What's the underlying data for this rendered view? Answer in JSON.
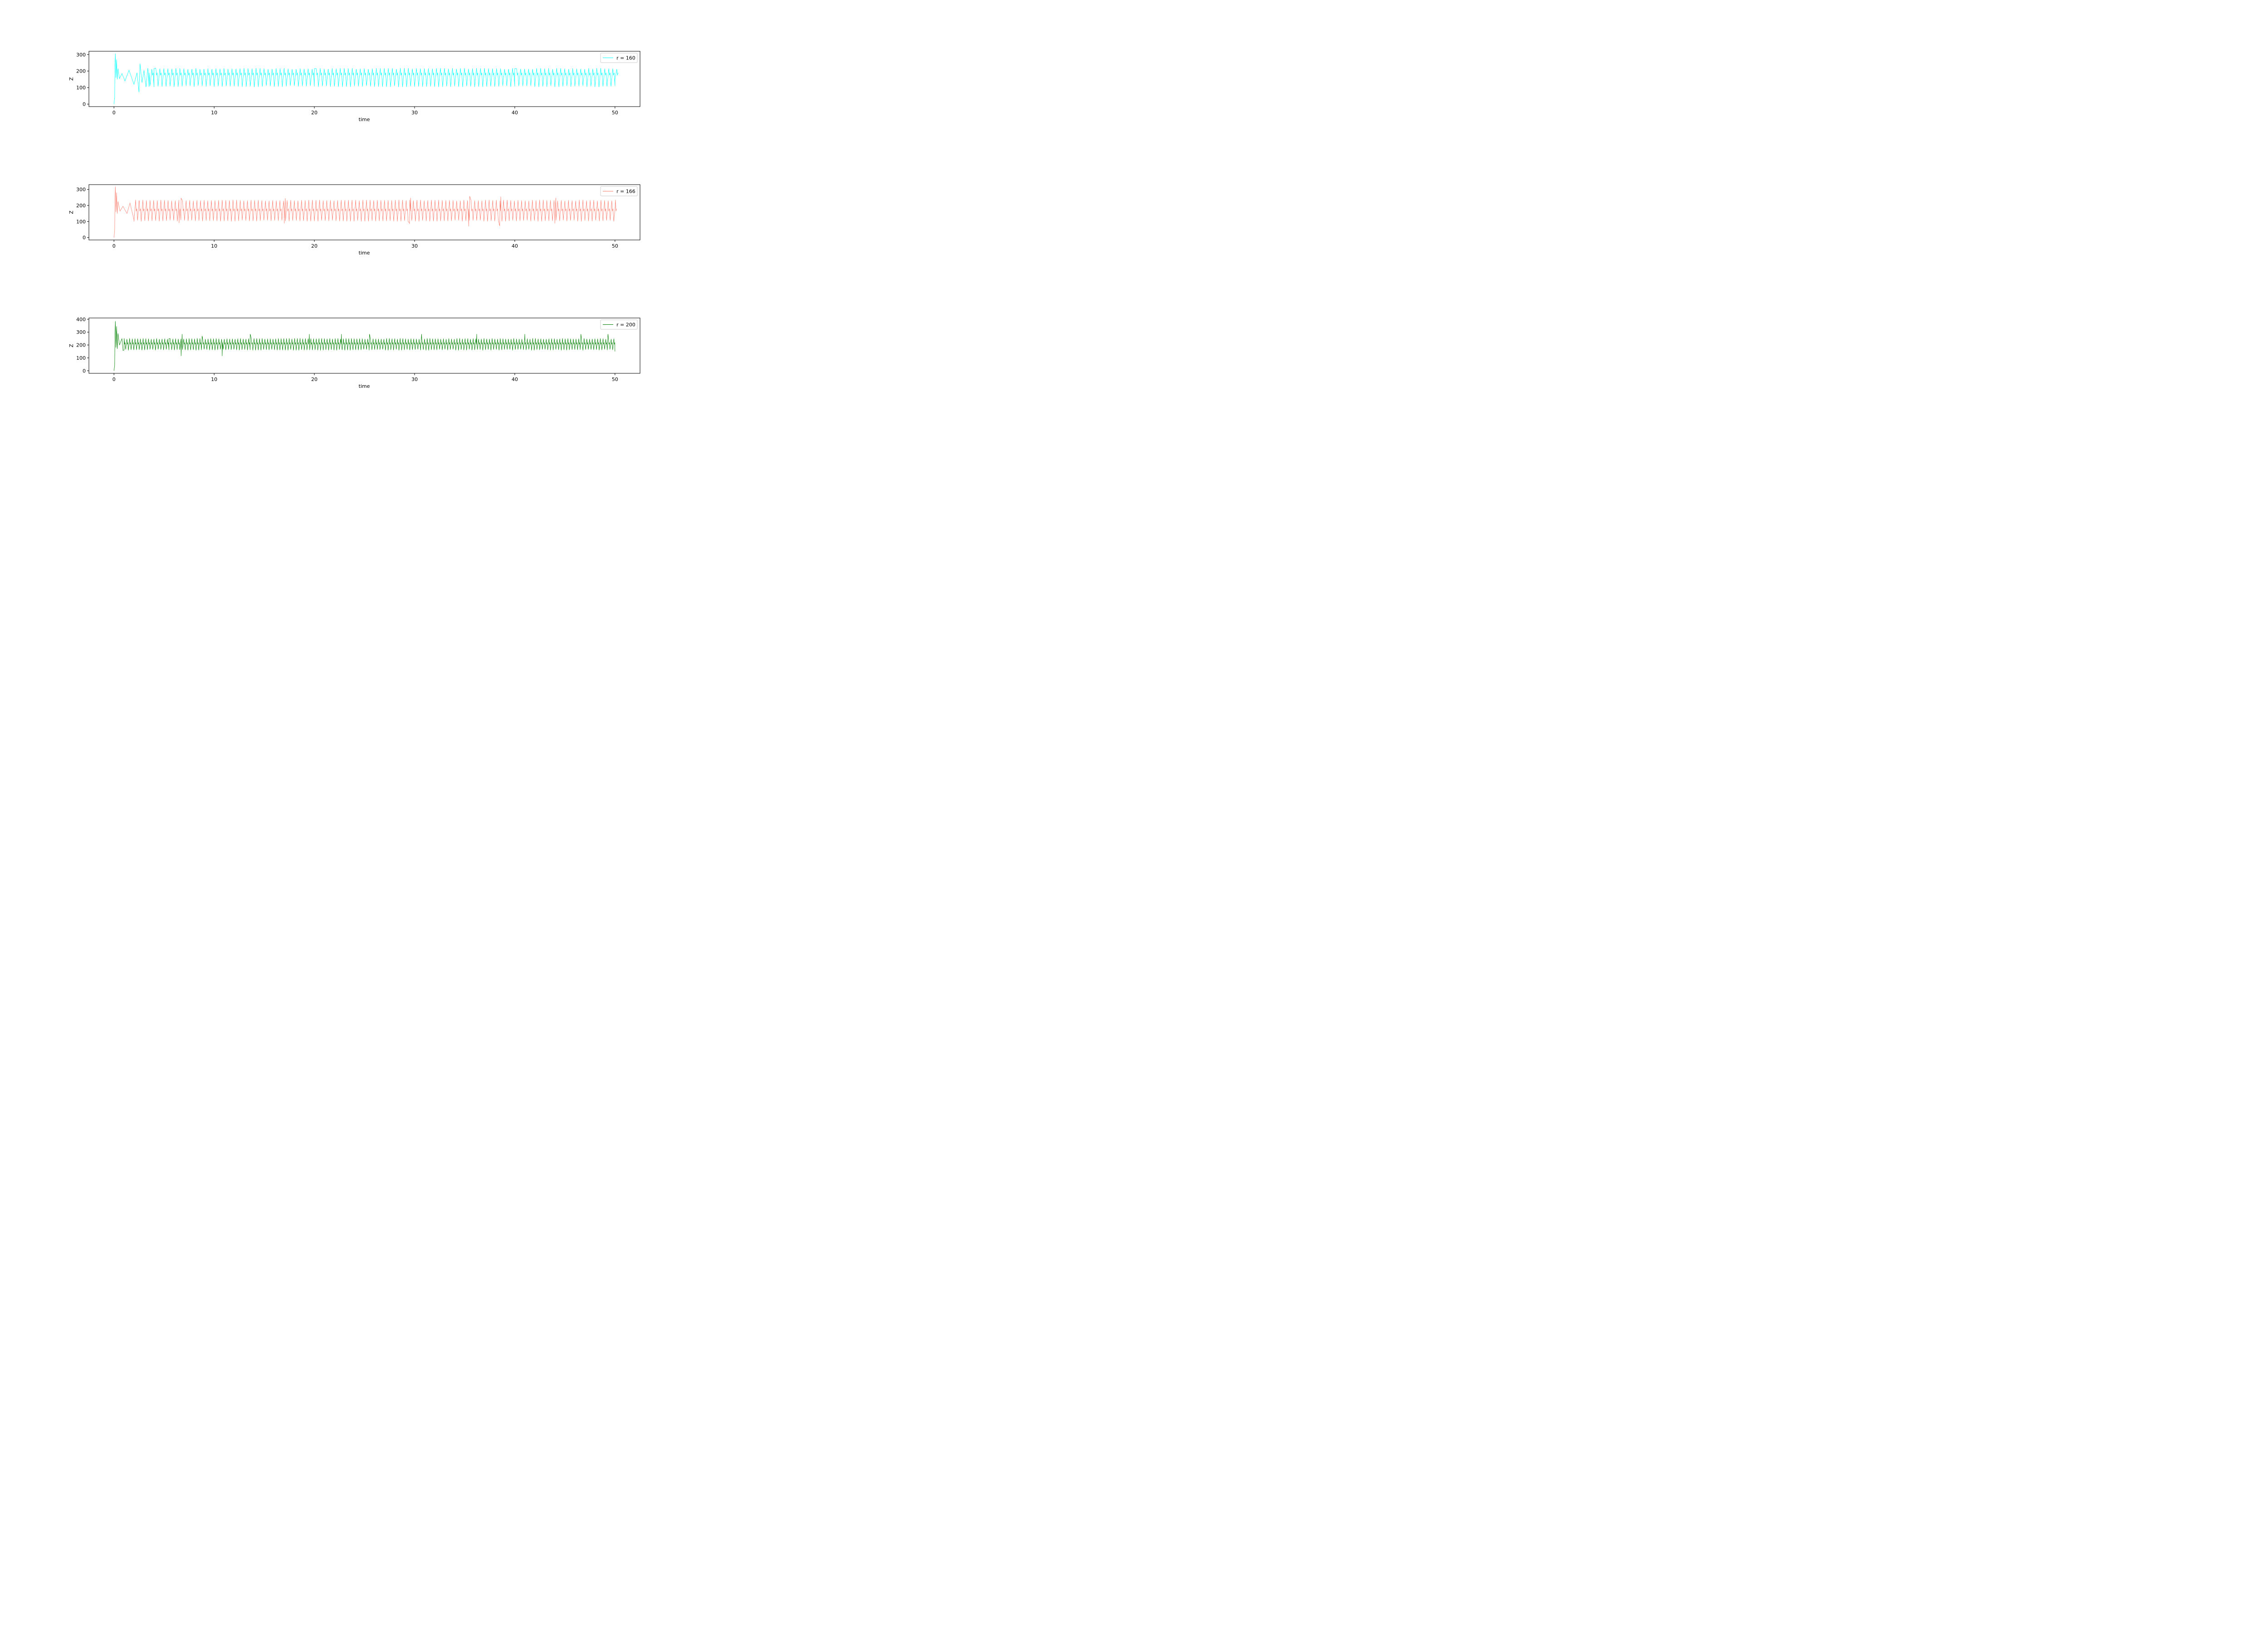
{
  "figure": {
    "background": "#ffffff"
  },
  "chart_data": [
    {
      "type": "line",
      "title": "",
      "xlabel": "time",
      "ylabel": "Z",
      "xlim": [
        -2.5,
        52.5
      ],
      "ylim": [
        -15,
        320
      ],
      "xticks": [
        0,
        10,
        20,
        30,
        40,
        50
      ],
      "yticks": [
        0,
        100,
        200,
        300
      ],
      "grid": false,
      "legend_position": "top-right",
      "series": [
        {
          "name": "r = 160",
          "color": "#00ffff",
          "sampled_points": [
            [
              0.0,
              0
            ],
            [
              0.07,
              40
            ],
            [
              0.1,
              230
            ],
            [
              0.14,
              305
            ],
            [
              0.2,
              160
            ],
            [
              0.26,
              270
            ],
            [
              0.33,
              150
            ],
            [
              0.4,
              215
            ],
            [
              0.55,
              155
            ],
            [
              0.8,
              185
            ],
            [
              1.1,
              140
            ],
            [
              1.5,
              205
            ],
            [
              2.0,
              120
            ],
            [
              2.3,
              190
            ],
            [
              2.5,
              72
            ],
            [
              2.6,
              245
            ],
            [
              2.8,
              130
            ],
            [
              3.0,
              205
            ],
            [
              3.5,
              105
            ],
            [
              4.0,
              215
            ],
            [
              10.0,
              105
            ],
            [
              20.0,
              215
            ],
            [
              30.0,
              105
            ],
            [
              40.0,
              215
            ],
            [
              50.0,
              150
            ]
          ],
          "steady_oscillation": {
            "start": 3.2,
            "end": 50.0,
            "min": 103,
            "mid": 185,
            "max": 218,
            "period": 0.4
          }
        }
      ]
    },
    {
      "type": "line",
      "title": "",
      "xlabel": "time",
      "ylabel": "Z",
      "xlim": [
        -2.5,
        52.5
      ],
      "ylim": [
        -15,
        330
      ],
      "xticks": [
        0,
        10,
        20,
        30,
        40,
        50
      ],
      "yticks": [
        0,
        100,
        200,
        300
      ],
      "grid": false,
      "legend_position": "top-right",
      "series": [
        {
          "name": "r = 166",
          "color": "#fa8072",
          "sampled_points": [
            [
              0.0,
              0
            ],
            [
              0.07,
              40
            ],
            [
              0.1,
              230
            ],
            [
              0.14,
              318
            ],
            [
              0.2,
              160
            ],
            [
              0.26,
              280
            ],
            [
              0.33,
              150
            ],
            [
              0.4,
              225
            ],
            [
              0.6,
              165
            ],
            [
              0.9,
              195
            ],
            [
              1.3,
              150
            ],
            [
              1.6,
              215
            ],
            [
              2.0,
              110
            ],
            [
              2.5,
              230
            ],
            [
              6.5,
              90
            ],
            [
              6.7,
              245
            ],
            [
              17.0,
              88
            ],
            [
              17.1,
              245
            ],
            [
              29.5,
              88
            ],
            [
              29.6,
              248
            ],
            [
              35.4,
              70
            ],
            [
              35.5,
              258
            ],
            [
              38.5,
              72
            ],
            [
              38.6,
              255
            ],
            [
              44.0,
              88
            ],
            [
              44.1,
              248
            ],
            [
              50.0,
              175
            ]
          ],
          "steady_oscillation": {
            "start": 2.0,
            "end": 50.0,
            "min": 100,
            "mid": 175,
            "max": 235,
            "period": 0.36
          }
        }
      ]
    },
    {
      "type": "line",
      "title": "",
      "xlabel": "time",
      "ylabel": "Z",
      "xlim": [
        -2.5,
        52.5
      ],
      "ylim": [
        -20,
        410
      ],
      "xticks": [
        0,
        10,
        20,
        30,
        40,
        50
      ],
      "yticks": [
        0,
        100,
        200,
        300,
        400
      ],
      "grid": false,
      "legend_position": "top-right",
      "series": [
        {
          "name": "r = 200",
          "color": "#008000",
          "sampled_points": [
            [
              0.0,
              0
            ],
            [
              0.07,
              40
            ],
            [
              0.1,
              260
            ],
            [
              0.14,
              385
            ],
            [
              0.2,
              180
            ],
            [
              0.26,
              345
            ],
            [
              0.33,
              170
            ],
            [
              0.4,
              290
            ],
            [
              0.55,
              200
            ],
            [
              0.8,
              250
            ],
            [
              1.0,
              160
            ],
            [
              5.5,
              250
            ],
            [
              6.7,
              115
            ],
            [
              6.8,
              285
            ],
            [
              8.8,
              270
            ],
            [
              10.8,
              115
            ],
            [
              13.6,
              285
            ],
            [
              19.5,
              285
            ],
            [
              22.7,
              285
            ],
            [
              25.5,
              285
            ],
            [
              30.7,
              285
            ],
            [
              36.2,
              285
            ],
            [
              41.0,
              285
            ],
            [
              46.6,
              285
            ],
            [
              49.3,
              285
            ],
            [
              50.0,
              150
            ]
          ],
          "steady_oscillation": {
            "start": 0.9,
            "end": 50.0,
            "min": 158,
            "mid": 215,
            "max": 252,
            "period": 0.27
          }
        }
      ]
    }
  ]
}
